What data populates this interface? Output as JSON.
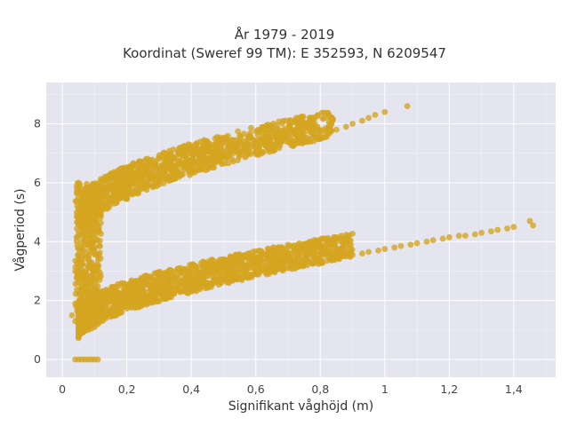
{
  "chart_data": {
    "type": "scatter",
    "title": "År 1979 - 2019",
    "subtitle": "Koordinat (Sweref 99 TM): E 352593, N 6209547",
    "xlabel": "Signifikant våghöjd (m)",
    "ylabel": "Vågperiod (s)",
    "xlim": [
      -0.05,
      1.53
    ],
    "ylim": [
      -0.6,
      9.4
    ],
    "x_ticks": [
      0,
      0.2,
      0.4,
      0.6,
      0.8,
      1,
      1.2,
      1.4
    ],
    "x_tick_labels": [
      "0",
      "0,2",
      "0,4",
      "0,6",
      "0,8",
      "1",
      "1,2",
      "1,4"
    ],
    "y_ticks": [
      0,
      2,
      4,
      6,
      8
    ],
    "y_tick_labels": [
      "0",
      "2",
      "4",
      "6",
      "8"
    ],
    "grid": true,
    "marker_color": "#d4a520",
    "background": "#e5e5f0",
    "series": [
      {
        "values_description": "",
        "x": [
          0.04,
          0.05,
          0.06,
          0.07,
          0.08,
          0.09,
          0.1,
          0.11,
          0.03,
          0.04,
          0.05,
          0.06,
          0.07,
          0.08,
          0.09,
          0.1,
          0.11,
          0.12,
          0.13,
          0.14,
          0.16,
          0.18,
          0.2,
          0.22,
          0.25,
          0.28,
          0.3,
          0.33,
          0.35,
          0.38,
          0.4,
          0.43,
          0.45,
          0.48,
          0.5,
          0.53,
          0.55,
          0.58,
          0.6,
          0.63,
          0.65,
          0.68,
          0.7,
          0.73,
          0.75,
          0.78,
          0.8,
          0.83,
          0.85,
          0.88,
          0.9,
          0.93,
          0.95,
          0.98,
          1.0,
          1.03,
          1.05,
          1.08,
          1.1,
          1.13,
          1.15,
          1.18,
          1.2,
          1.23,
          1.25,
          1.28,
          1.3,
          1.33,
          1.35,
          1.38,
          1.4,
          1.45,
          1.46,
          0.04,
          0.05,
          0.06,
          0.07,
          0.08,
          0.09,
          0.1,
          0.11,
          0.12,
          0.14,
          0.16,
          0.18,
          0.2,
          0.23,
          0.25,
          0.28,
          0.3,
          0.33,
          0.35,
          0.38,
          0.4,
          0.43,
          0.45,
          0.48,
          0.5,
          0.53,
          0.55,
          0.58,
          0.6,
          0.63,
          0.65,
          0.68,
          0.7,
          0.73,
          0.75,
          0.78,
          0.8,
          0.83,
          0.85,
          0.88,
          0.9,
          0.93,
          0.95,
          0.97,
          1.0,
          1.07
        ],
        "y": [
          0,
          0,
          0,
          0,
          0,
          0,
          0,
          0,
          1.5,
          1.3,
          1.2,
          1.1,
          1.1,
          1.0,
          1.05,
          1.1,
          1.2,
          1.35,
          1.5,
          1.6,
          1.7,
          1.8,
          1.9,
          2.0,
          2.1,
          2.2,
          2.3,
          2.35,
          2.4,
          2.45,
          2.5,
          2.55,
          2.6,
          2.65,
          2.7,
          2.75,
          2.8,
          2.85,
          2.9,
          2.95,
          3.0,
          3.05,
          3.1,
          3.15,
          3.2,
          3.3,
          3.35,
          3.4,
          3.45,
          3.5,
          3.55,
          3.6,
          3.65,
          3.7,
          3.75,
          3.8,
          3.85,
          3.9,
          3.95,
          4.0,
          4.05,
          4.1,
          4.15,
          4.2,
          4.2,
          4.25,
          4.3,
          4.35,
          4.4,
          4.45,
          4.5,
          4.7,
          4.55,
          3.0,
          3.5,
          4.0,
          4.5,
          5.0,
          5.3,
          5.5,
          5.6,
          5.7,
          5.8,
          5.9,
          6.0,
          6.1,
          6.2,
          6.3,
          6.35,
          6.4,
          6.5,
          6.55,
          6.6,
          6.7,
          6.75,
          6.8,
          6.85,
          6.9,
          7.0,
          7.05,
          7.1,
          7.2,
          7.25,
          7.3,
          7.4,
          7.45,
          7.5,
          7.55,
          7.6,
          7.7,
          7.75,
          7.8,
          7.9,
          8.0,
          8.1,
          8.2,
          8.3,
          8.4,
          8.6
        ]
      }
    ]
  }
}
